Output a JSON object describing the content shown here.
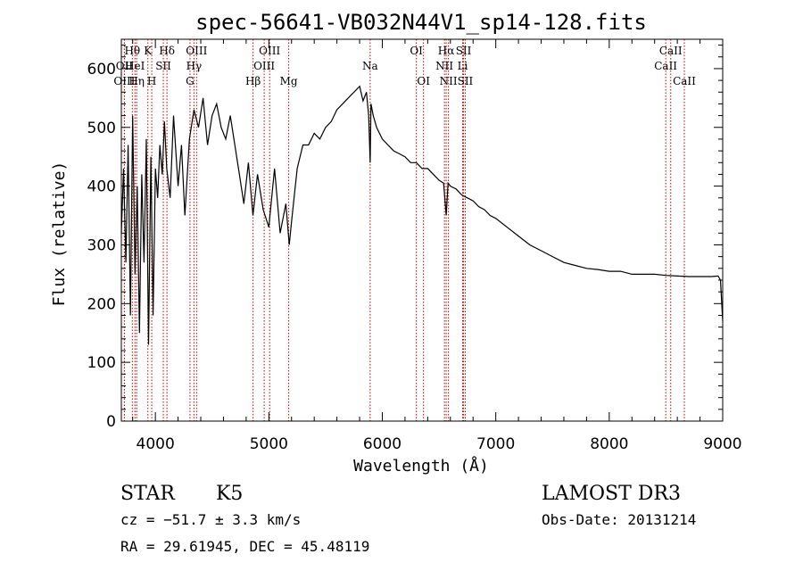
{
  "chart_data": {
    "type": "line",
    "title": "spec-56641-VB032N44V1_sp14-128.fits",
    "xlabel": "Wavelength (Å)",
    "ylabel": "Flux (relative)",
    "xlim": [
      3700,
      9000
    ],
    "ylim": [
      0,
      650
    ],
    "x_ticks": [
      4000,
      5000,
      6000,
      7000,
      8000,
      9000
    ],
    "y_ticks": [
      0,
      100,
      200,
      300,
      400,
      500,
      600
    ],
    "series": [
      {
        "name": "flux",
        "x": [
          3700,
          3720,
          3740,
          3760,
          3780,
          3800,
          3820,
          3840,
          3860,
          3880,
          3900,
          3920,
          3940,
          3960,
          3980,
          4000,
          4020,
          4040,
          4060,
          4080,
          4100,
          4130,
          4160,
          4200,
          4230,
          4260,
          4300,
          4340,
          4380,
          4420,
          4460,
          4500,
          4540,
          4580,
          4620,
          4660,
          4700,
          4740,
          4780,
          4820,
          4860,
          4900,
          4950,
          5000,
          5050,
          5100,
          5150,
          5180,
          5200,
          5250,
          5300,
          5350,
          5400,
          5450,
          5500,
          5550,
          5600,
          5650,
          5700,
          5750,
          5800,
          5830,
          5860,
          5880,
          5893,
          5900,
          5920,
          5950,
          6000,
          6050,
          6100,
          6150,
          6200,
          6250,
          6300,
          6350,
          6400,
          6450,
          6500,
          6540,
          6563,
          6580,
          6600,
          6650,
          6700,
          6750,
          6800,
          6850,
          6900,
          6950,
          7000,
          7100,
          7200,
          7300,
          7400,
          7500,
          7600,
          7700,
          7800,
          7900,
          8000,
          8100,
          8200,
          8300,
          8400,
          8500,
          8600,
          8700,
          8800,
          8900,
          8960,
          8980,
          9000
        ],
        "y": [
          320,
          430,
          270,
          470,
          180,
          520,
          250,
          400,
          150,
          420,
          270,
          480,
          130,
          450,
          180,
          430,
          380,
          470,
          420,
          510,
          430,
          380,
          520,
          400,
          470,
          350,
          480,
          530,
          500,
          550,
          470,
          520,
          540,
          500,
          480,
          520,
          470,
          420,
          370,
          440,
          350,
          420,
          360,
          330,
          430,
          320,
          370,
          300,
          340,
          430,
          470,
          470,
          490,
          480,
          500,
          510,
          530,
          540,
          550,
          560,
          570,
          545,
          560,
          520,
          440,
          540,
          520,
          500,
          480,
          470,
          460,
          455,
          450,
          440,
          440,
          430,
          430,
          420,
          410,
          405,
          350,
          405,
          400,
          395,
          385,
          380,
          375,
          365,
          360,
          350,
          345,
          330,
          315,
          300,
          290,
          280,
          270,
          265,
          260,
          258,
          255,
          255,
          250,
          250,
          250,
          248,
          247,
          246,
          246,
          246,
          247,
          240,
          170
        ]
      }
    ],
    "lines": [
      {
        "name": "OII",
        "x": 3727,
        "row": 1
      },
      {
        "name": "OIII",
        "x": 3727,
        "row": 2
      },
      {
        "name": "Hθ",
        "x": 3797,
        "row": 0
      },
      {
        "name": "HeI",
        "x": 3820,
        "row": 1
      },
      {
        "name": "Hη",
        "x": 3835,
        "row": 2
      },
      {
        "name": "K",
        "x": 3934,
        "row": 0
      },
      {
        "name": "H",
        "x": 3968,
        "row": 2
      },
      {
        "name": "SII",
        "x": 4070,
        "row": 1
      },
      {
        "name": "Hδ",
        "x": 4102,
        "row": 0
      },
      {
        "name": "Hγ",
        "x": 4340,
        "row": 1
      },
      {
        "name": "OIII",
        "x": 4363,
        "row": 0
      },
      {
        "name": "G",
        "x": 4305,
        "row": 2
      },
      {
        "name": "Hβ",
        "x": 4861,
        "row": 2
      },
      {
        "name": "OIII",
        "x": 4959,
        "row": 1
      },
      {
        "name": "OIII",
        "x": 5007,
        "row": 0
      },
      {
        "name": "Mg",
        "x": 5175,
        "row": 2
      },
      {
        "name": "Na",
        "x": 5893,
        "row": 1
      },
      {
        "name": "OI",
        "x": 6300,
        "row": 0
      },
      {
        "name": "OI",
        "x": 6363,
        "row": 2
      },
      {
        "name": "NII",
        "x": 6548,
        "row": 1
      },
      {
        "name": "Hα",
        "x": 6563,
        "row": 0
      },
      {
        "name": "NII",
        "x": 6583,
        "row": 2
      },
      {
        "name": "SII",
        "x": 6716,
        "row": 0
      },
      {
        "name": "Li",
        "x": 6708,
        "row": 1
      },
      {
        "name": "SII",
        "x": 6731,
        "row": 2
      },
      {
        "name": "CaII",
        "x": 8498,
        "row": 1
      },
      {
        "name": "CaII",
        "x": 8542,
        "row": 0
      },
      {
        "name": "CaII",
        "x": 8662,
        "row": 2
      }
    ]
  },
  "info": {
    "class": "STAR",
    "subclass": "K5",
    "survey": "LAMOST DR3",
    "cz": "cz = −51.7 ± 3.3 km/s",
    "obs_date": "Obs-Date: 20131214",
    "coords": "RA =  29.61945, DEC =  45.48119"
  },
  "colors": {
    "spectrum": "#000000",
    "line_marker": "#cc0000",
    "axis": "#000000"
  }
}
